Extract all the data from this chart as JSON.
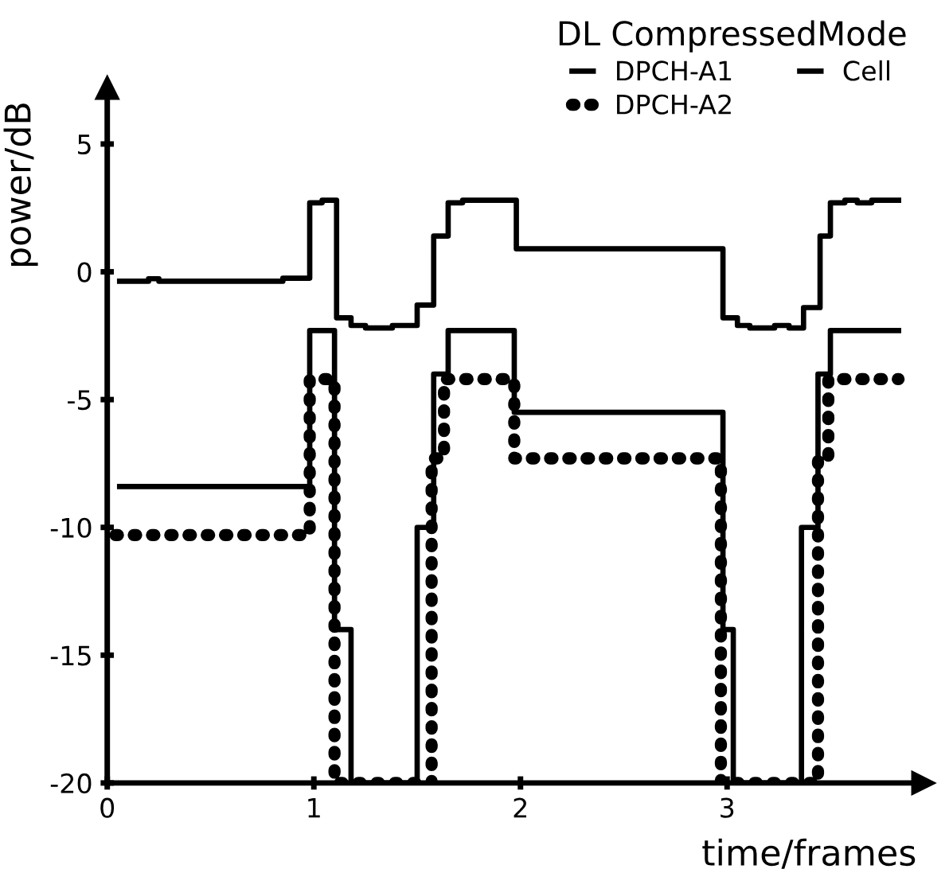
{
  "chart_data": {
    "type": "step",
    "xlabel": "time/frames",
    "ylabel": "power/dB",
    "legend_title": "DL CompressedMode",
    "xlim": [
      0,
      3.95
    ],
    "ylim": [
      -20,
      7.2
    ],
    "xticks": [
      0,
      1,
      2,
      3
    ],
    "yticks": [
      -20,
      -15,
      -10,
      -5,
      0,
      5
    ],
    "grid": false,
    "legend": "top right",
    "series": [
      {
        "name": "DPCH-A1",
        "color": "#000000",
        "line_style": "solid",
        "x": [
          0.06,
          0.98,
          1.1,
          1.18,
          1.5,
          1.58,
          1.65,
          1.97,
          2.98,
          3.03,
          3.36,
          3.44,
          3.5,
          3.83
        ],
        "values": [
          -8.4,
          -2.3,
          -14,
          -20,
          -10,
          -4,
          -2.3,
          -5.5,
          -14,
          -20,
          -10,
          -4,
          -2.3,
          -2.3
        ]
      },
      {
        "name": "DPCH-A2",
        "color": "#000000",
        "line_style": "dotted",
        "x": [
          0.04,
          0.98,
          1.1,
          1.57,
          1.63,
          1.97,
          2.97,
          3.44,
          3.49,
          3.83
        ],
        "values": [
          -10.3,
          -4.2,
          -20,
          -7.3,
          -4.2,
          -7.3,
          -20,
          -7.3,
          -4.2,
          -4.2
        ]
      },
      {
        "name": "Cell",
        "color": "#000000",
        "line_style": "solid",
        "x": [
          0.06,
          0.2,
          0.25,
          0.85,
          0.98,
          1.04,
          1.11,
          1.18,
          1.25,
          1.38,
          1.5,
          1.58,
          1.65,
          1.72,
          1.98,
          2.98,
          3.05,
          3.11,
          3.23,
          3.3,
          3.37,
          3.45,
          3.5,
          3.57,
          3.63,
          3.7,
          3.83
        ],
        "values": [
          -0.37,
          -0.27,
          -0.37,
          -0.25,
          2.7,
          2.8,
          -1.8,
          -2.1,
          -2.2,
          -2.1,
          -1.3,
          1.4,
          2.7,
          2.8,
          0.9,
          -1.8,
          -2.1,
          -2.2,
          -2.1,
          -2.2,
          -1.4,
          1.4,
          2.7,
          2.8,
          2.7,
          2.8,
          2.8
        ]
      }
    ]
  }
}
